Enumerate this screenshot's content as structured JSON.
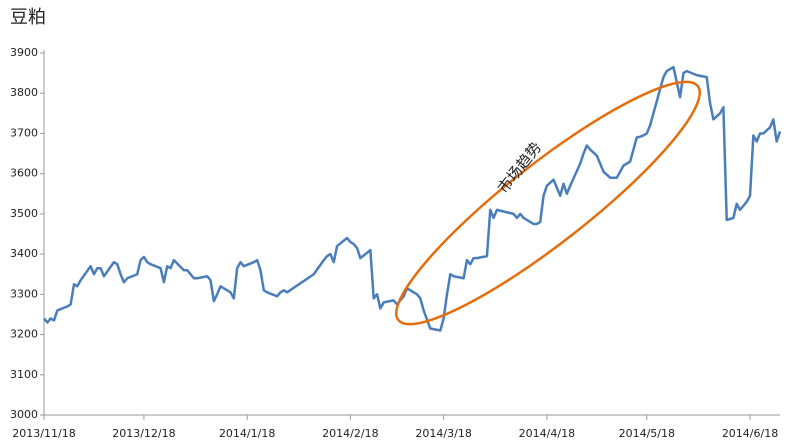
{
  "chart_data": {
    "type": "line",
    "title": "豆粕",
    "annotation": "市场趋势",
    "annotation_color": "#e46c0a",
    "x": [
      "2013/11/18",
      "2013/11/19",
      "2013/11/20",
      "2013/11/21",
      "2013/11/22",
      "2013/11/25",
      "2013/11/26",
      "2013/11/27",
      "2013/11/28",
      "2013/11/29",
      "2013/12/2",
      "2013/12/3",
      "2013/12/4",
      "2013/12/5",
      "2013/12/6",
      "2013/12/9",
      "2013/12/10",
      "2013/12/11",
      "2013/12/12",
      "2013/12/13",
      "2013/12/16",
      "2013/12/17",
      "2013/12/18",
      "2013/12/19",
      "2013/12/20",
      "2013/12/23",
      "2013/12/24",
      "2013/12/25",
      "2013/12/26",
      "2013/12/27",
      "2013/12/30",
      "2013/12/31",
      "2014/1/2",
      "2014/1/3",
      "2014/1/6",
      "2014/1/7",
      "2014/1/8",
      "2014/1/9",
      "2014/1/10",
      "2014/1/13",
      "2014/1/14",
      "2014/1/15",
      "2014/1/16",
      "2014/1/17",
      "2014/1/20",
      "2014/1/21",
      "2014/1/22",
      "2014/1/23",
      "2014/1/24",
      "2014/1/27",
      "2014/1/28",
      "2014/1/29",
      "2014/1/30",
      "2014/2/7",
      "2014/2/10",
      "2014/2/11",
      "2014/2/12",
      "2014/2/13",
      "2014/2/14",
      "2014/2/17",
      "2014/2/18",
      "2014/2/19",
      "2014/2/20",
      "2014/2/21",
      "2014/2/24",
      "2014/2/25",
      "2014/2/26",
      "2014/2/27",
      "2014/2/28",
      "2014/3/3",
      "2014/3/4",
      "2014/3/5",
      "2014/3/6",
      "2014/3/7",
      "2014/3/10",
      "2014/3/11",
      "2014/3/12",
      "2014/3/14",
      "2014/3/17",
      "2014/3/18",
      "2014/3/19",
      "2014/3/20",
      "2014/3/21",
      "2014/3/24",
      "2014/3/25",
      "2014/3/26",
      "2014/3/27",
      "2014/3/28",
      "2014/3/31",
      "2014/4/1",
      "2014/4/2",
      "2014/4/3",
      "2014/4/8",
      "2014/4/9",
      "2014/4/10",
      "2014/4/11",
      "2014/4/14",
      "2014/4/15",
      "2014/4/16",
      "2014/4/17",
      "2014/4/18",
      "2014/4/20",
      "2014/4/21",
      "2014/4/22",
      "2014/4/23",
      "2014/4/24",
      "2014/4/25",
      "2014/4/28",
      "2014/4/29",
      "2014/4/30",
      "2014/5/1",
      "2014/5/3",
      "2014/5/4",
      "2014/5/5",
      "2014/5/7",
      "2014/5/9",
      "2014/5/10",
      "2014/5/11",
      "2014/5/13",
      "2014/5/15",
      "2014/5/16",
      "2014/5/17",
      "2014/5/18",
      "2014/5/19",
      "2014/5/20",
      "2014/5/23",
      "2014/5/24",
      "2014/5/25",
      "2014/5/26",
      "2014/5/28",
      "2014/5/29",
      "2014/5/30",
      "2014/6/2",
      "2014/6/5",
      "2014/6/6",
      "2014/6/7",
      "2014/6/9",
      "2014/6/10",
      "2014/6/11",
      "2014/6/13",
      "2014/6/14",
      "2014/6/15",
      "2014/6/17",
      "2014/6/18",
      "2014/6/19",
      "2014/6/20",
      "2014/6/21",
      "2014/6/22",
      "2014/6/24",
      "2014/6/25",
      "2014/6/26",
      "2014/6/27"
    ],
    "series": [
      {
        "color": "#4a7ebb",
        "values": [
          3240,
          3230,
          3240,
          3235,
          3260,
          3270,
          3275,
          3325,
          3320,
          3335,
          3370,
          3350,
          3365,
          3365,
          3345,
          3380,
          3375,
          3350,
          3330,
          3340,
          3350,
          3385,
          3393,
          3380,
          3375,
          3365,
          3330,
          3370,
          3365,
          3385,
          3360,
          3360,
          3340,
          3340,
          3345,
          3335,
          3283,
          3300,
          3320,
          3305,
          3290,
          3365,
          3380,
          3370,
          3380,
          3385,
          3360,
          3310,
          3305,
          3295,
          3305,
          3310,
          3305,
          3350,
          3385,
          3395,
          3400,
          3380,
          3420,
          3440,
          3430,
          3425,
          3415,
          3390,
          3410,
          3290,
          3300,
          3265,
          3280,
          3285,
          3275,
          3285,
          3295,
          3315,
          3300,
          3290,
          3260,
          3215,
          3210,
          3240,
          3300,
          3350,
          3345,
          3340,
          3385,
          3375,
          3390,
          3390,
          3395,
          3510,
          3490,
          3510,
          3500,
          3490,
          3500,
          3490,
          3475,
          3475,
          3480,
          3545,
          3570,
          3585,
          3565,
          3545,
          3575,
          3550,
          3570,
          3625,
          3650,
          3670,
          3660,
          3645,
          3625,
          3605,
          3590,
          3590,
          3605,
          3620,
          3630,
          3690,
          3692,
          3695,
          3700,
          3720,
          3750,
          3840,
          3855,
          3860,
          3865,
          3790,
          3850,
          3855,
          3845,
          3840,
          3775,
          3735,
          3750,
          3765,
          3485,
          3490,
          3525,
          3510,
          3530,
          3545,
          3695,
          3680,
          3700,
          3700,
          3715,
          3735,
          3680,
          3705
        ]
      }
    ],
    "xlim": [
      "2013/11/18",
      "2014/6/27"
    ],
    "xticks": [
      "2013/11/18",
      "2013/12/18",
      "2014/1/18",
      "2014/2/18",
      "2014/3/18",
      "2014/4/18",
      "2014/5/18",
      "2014/6/18"
    ],
    "ylim": [
      3000,
      3900
    ],
    "yticks": [
      3000,
      3100,
      3200,
      3300,
      3400,
      3500,
      3600,
      3700,
      3800,
      3900
    ]
  }
}
